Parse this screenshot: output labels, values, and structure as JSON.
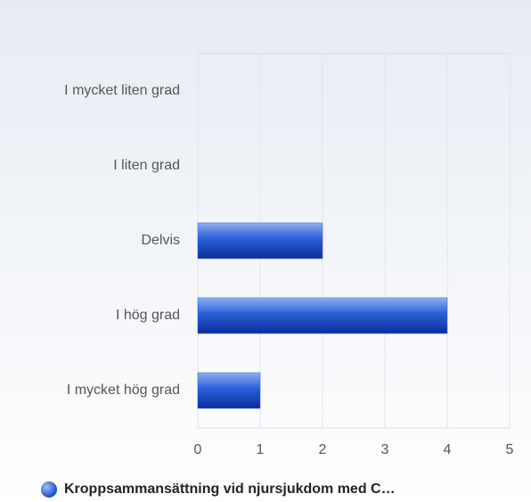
{
  "chart_data": {
    "type": "bar",
    "orientation": "horizontal",
    "categories": [
      "I mycket liten grad",
      "I liten grad",
      "Delvis",
      "I hög grad",
      "I mycket hög grad"
    ],
    "series": [
      {
        "name": "Kroppsammansättning vid njursjukdom med C…",
        "color": "#2a5fd6",
        "values": [
          0,
          0,
          2,
          4,
          1
        ]
      }
    ],
    "xlim": [
      0,
      5
    ],
    "xticks": [
      0,
      1,
      2,
      3,
      4,
      5
    ],
    "grid": true
  }
}
